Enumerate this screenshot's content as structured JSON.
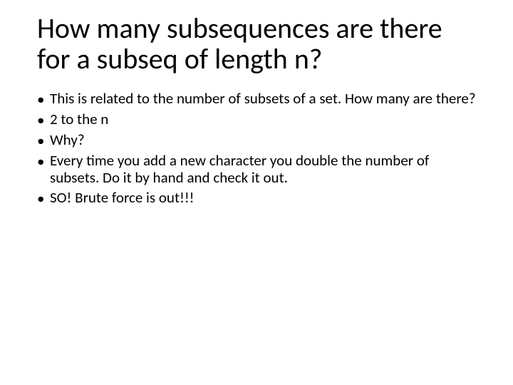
{
  "title_fontsize": 40,
  "body_fontsize": 21,
  "text_color": "#000000",
  "background_color": "#ffffff",
  "bullet_marker": "•",
  "title": "How many subsequences are there for a subseq of length n?",
  "bullets": [
    "This is related to the number of subsets of a set.  How many are there?",
    "2 to the n",
    "Why?",
    "Every time you add a new character you double the number of subsets.  Do it by hand and check it out.",
    "SO! Brute force is out!!!"
  ]
}
